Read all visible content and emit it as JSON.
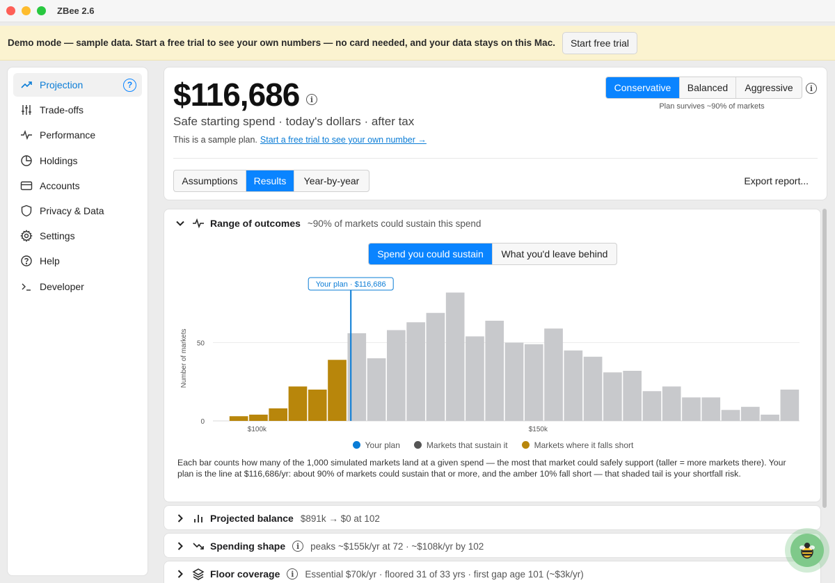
{
  "window": {
    "title": "ZBee 2.6"
  },
  "banner": {
    "text": "Demo mode — sample data. Start a free trial to see your own numbers — no card needed, and your data stays on this Mac.",
    "button": "Start free trial"
  },
  "sidebar": {
    "items": [
      {
        "label": "Projection",
        "icon": "trend-up-icon",
        "active": true
      },
      {
        "label": "Trade-offs",
        "icon": "sliders-icon"
      },
      {
        "label": "Performance",
        "icon": "pulse-icon"
      },
      {
        "label": "Holdings",
        "icon": "pie-icon"
      },
      {
        "label": "Accounts",
        "icon": "card-icon"
      },
      {
        "label": "Privacy & Data",
        "icon": "shield-icon"
      },
      {
        "label": "Settings",
        "icon": "gear-icon"
      },
      {
        "label": "Help",
        "icon": "help-circle-icon"
      },
      {
        "label": "Developer",
        "icon": "terminal-icon"
      }
    ],
    "help_badge": "?"
  },
  "summary": {
    "amount": "$116,686",
    "subtitle": "Safe starting spend · today's dollars · after tax",
    "sample_text": "This is a sample plan.",
    "sample_link": "Start a free trial to see your own number →",
    "risk_options": [
      "Conservative",
      "Balanced",
      "Aggressive"
    ],
    "risk_selected": 0,
    "survives": "Plan survives ~90% of markets",
    "tabs": [
      "Assumptions",
      "Results",
      "Year-by-year"
    ],
    "tab_selected": 1,
    "export": "Export report..."
  },
  "outcomes": {
    "title": "Range of outcomes",
    "subtitle": "~90% of markets could sustain this spend",
    "toggle": [
      "Spend you could sustain",
      "What you'd leave behind"
    ],
    "toggle_selected": 0,
    "explanation": "Each bar counts how many of the 1,000 simulated markets land at a given spend — the most that market could safely support (taller = more markets there). Your plan is the line at $116,686/yr: about 90% of markets could sustain that or more, and the amber 10% fall short — that shaded tail is your shortfall risk."
  },
  "chart_data": {
    "type": "bar",
    "ylabel": "Number of markets",
    "y_ticks": [
      "0",
      "50"
    ],
    "ylim": [
      0,
      80
    ],
    "x_ticks": [
      {
        "label": "$100k",
        "value": 100
      },
      {
        "label": "$150k",
        "value": 150
      }
    ],
    "bin_start": 95,
    "bin_width": 3.5,
    "values": [
      3,
      4,
      8,
      22,
      20,
      39,
      56,
      40,
      58,
      63,
      69,
      82,
      54,
      64,
      50,
      49,
      59,
      45,
      41,
      31,
      32,
      19,
      22,
      15,
      15,
      7,
      9,
      4,
      20
    ],
    "shortfall_count": 6,
    "plan_marker": {
      "label": "Your plan · $116,686",
      "value": 116.686
    },
    "legend": [
      "Your plan",
      "Markets that sustain it",
      "Markets where it falls short"
    ],
    "colors": {
      "plan": "#0a7cd6",
      "sustain": "#c8c9cc",
      "short": "#b8860b",
      "sustain_dot": "#555555"
    },
    "grid": true,
    "legend_position": "bottom"
  },
  "sections": [
    {
      "title": "Projected balance",
      "subtitle": "$891k → $0 at 102",
      "icon": "bar-chart-icon",
      "info": false
    },
    {
      "title": "Spending shape",
      "subtitle": "peaks ~$155k/yr at 72 · ~$108k/yr by 102",
      "icon": "trend-down-icon",
      "info": true
    },
    {
      "title": "Floor coverage",
      "subtitle": "Essential $70k/yr · floored 31 of 33 yrs · first gap age 101 (~$3k/yr)",
      "icon": "layers-icon",
      "info": true
    }
  ]
}
